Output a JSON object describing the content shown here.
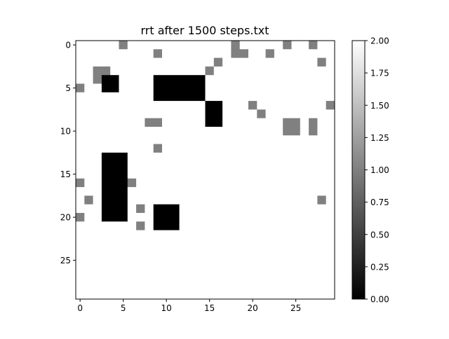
{
  "chart_data": {
    "type": "heatmap",
    "title": "rrt after 1500 steps.txt",
    "colormap": "gray",
    "vmin": 0,
    "vmax": 2,
    "x_ticks": [
      0,
      5,
      10,
      15,
      20,
      25
    ],
    "y_ticks": [
      0,
      5,
      10,
      15,
      20,
      25
    ],
    "colorbar_ticks": [
      "0.00",
      "0.25",
      "0.50",
      "0.75",
      "1.00",
      "1.25",
      "1.50",
      "1.75",
      "2.00"
    ],
    "grid_shape": [
      30,
      30
    ],
    "rows": [
      "222221222222222222122222122122",
      "222222222122222222112212222222",
      "222222222222222212222222222212",
      "221122222222222122222222222222",
      "221002222000000222222222222222",
      "122002222000000222222222222222",
      "222222222000000222222222222222",
      "222222222222222002221222222221",
      "222222222222222002222122222222",
      "222222221122222002222222112122",
      "222222222222222222222222112122",
      "222222222222222222222222222222",
      "222222222122222222222222222222",
      "222000222222222222222222222222",
      "222000222222222222222222222222",
      "222000222222222222222222222222",
      "122000122222222222222222222222",
      "222000222222222222222222222222",
      "212000222222222222222222222212",
      "222000212000222222222222222222",
      "122000222000222222222222222222",
      "222222212000222222222222222222",
      "222222222222222222222222222222",
      "222222222222222222222222222222",
      "222222222222222222222222222222",
      "222222222222222222222222222222",
      "222222222222222222222222222222",
      "222222222222222222222222222222",
      "222222222222222222222222222222",
      "222222222222222222222222222222"
    ]
  }
}
